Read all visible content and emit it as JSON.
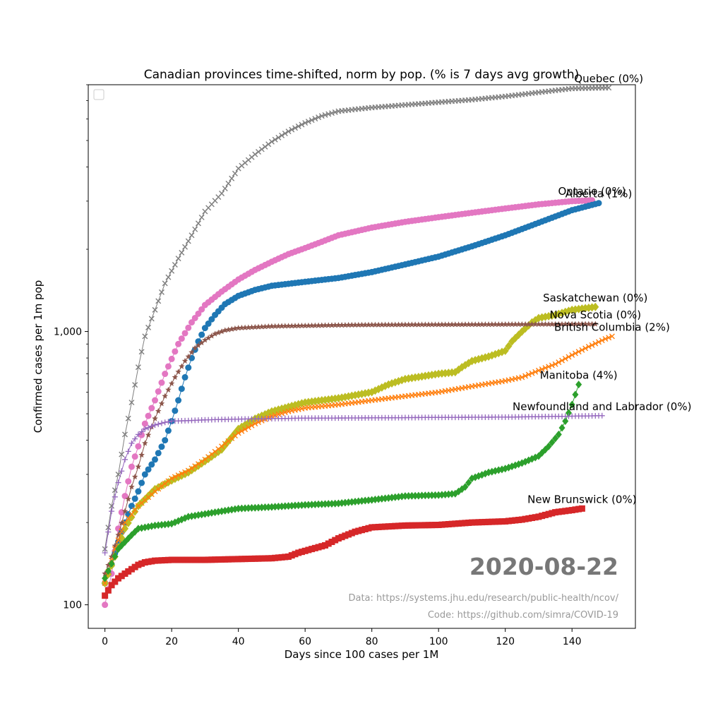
{
  "chart_data": {
    "type": "line",
    "title": "Canadian provinces time-shifted, norm by pop. (% is 7 days avg growth)",
    "xlabel": "Days since 100 cases per 1M",
    "ylabel": "Confirmed cases per 1m pop",
    "xlim": [
      -5,
      159
    ],
    "ylim": [
      82,
      8000
    ],
    "yscale": "log",
    "grid": false,
    "legend": "top-left (empty box)",
    "xticks": [
      0,
      20,
      40,
      60,
      80,
      100,
      120,
      140
    ],
    "xtick_labels": [
      "0",
      "20",
      "40",
      "60",
      "80",
      "100",
      "120",
      "140"
    ],
    "yticks": [
      100,
      1000
    ],
    "ytick_labels": [
      "100",
      "1,000"
    ],
    "date_label": "2020-08-22",
    "source_data": "Data: https://systems.jhu.edu/research/public-health/ncov/",
    "source_code": "Code: https://github.com/simra/COVID-19",
    "series": [
      {
        "name": "Quebec",
        "label": "Quebec (0%)",
        "color": "#7f7f7f",
        "marker": "x",
        "last_day": 151,
        "points": [
          [
            0,
            160
          ],
          [
            2,
            230
          ],
          [
            4,
            300
          ],
          [
            6,
            420
          ],
          [
            8,
            550
          ],
          [
            10,
            740
          ],
          [
            12,
            960
          ],
          [
            15,
            1200
          ],
          [
            18,
            1500
          ],
          [
            22,
            1850
          ],
          [
            26,
            2250
          ],
          [
            30,
            2750
          ],
          [
            35,
            3200
          ],
          [
            40,
            3950
          ],
          [
            45,
            4450
          ],
          [
            50,
            4950
          ],
          [
            55,
            5400
          ],
          [
            60,
            5800
          ],
          [
            65,
            6150
          ],
          [
            70,
            6400
          ],
          [
            80,
            6600
          ],
          [
            90,
            6750
          ],
          [
            100,
            6900
          ],
          [
            110,
            7050
          ],
          [
            120,
            7250
          ],
          [
            130,
            7500
          ],
          [
            140,
            7750
          ],
          [
            151,
            7800
          ]
        ]
      },
      {
        "name": "Ontario",
        "label": "Ontario (0%)",
        "color": "#e377c2",
        "marker": "o",
        "last_day": 146,
        "points": [
          [
            0,
            100
          ],
          [
            2,
            130
          ],
          [
            4,
            190
          ],
          [
            6,
            250
          ],
          [
            8,
            320
          ],
          [
            10,
            380
          ],
          [
            12,
            460
          ],
          [
            15,
            560
          ],
          [
            18,
            700
          ],
          [
            22,
            900
          ],
          [
            26,
            1080
          ],
          [
            30,
            1250
          ],
          [
            35,
            1400
          ],
          [
            40,
            1550
          ],
          [
            45,
            1680
          ],
          [
            50,
            1800
          ],
          [
            55,
            1920
          ],
          [
            60,
            2020
          ],
          [
            65,
            2130
          ],
          [
            70,
            2250
          ],
          [
            80,
            2400
          ],
          [
            90,
            2520
          ],
          [
            100,
            2620
          ],
          [
            110,
            2720
          ],
          [
            120,
            2820
          ],
          [
            130,
            2920
          ],
          [
            140,
            3000
          ],
          [
            146,
            3020
          ]
        ]
      },
      {
        "name": "Alberta",
        "label": "Alberta (1%)",
        "color": "#1f77b4",
        "marker": "o",
        "last_day": 148,
        "points": [
          [
            0,
            120
          ],
          [
            2,
            140
          ],
          [
            4,
            170
          ],
          [
            6,
            200
          ],
          [
            8,
            230
          ],
          [
            10,
            260
          ],
          [
            12,
            300
          ],
          [
            15,
            340
          ],
          [
            18,
            400
          ],
          [
            20,
            470
          ],
          [
            22,
            560
          ],
          [
            24,
            680
          ],
          [
            26,
            800
          ],
          [
            28,
            920
          ],
          [
            30,
            1030
          ],
          [
            33,
            1150
          ],
          [
            36,
            1260
          ],
          [
            40,
            1350
          ],
          [
            45,
            1420
          ],
          [
            50,
            1470
          ],
          [
            60,
            1520
          ],
          [
            70,
            1570
          ],
          [
            80,
            1650
          ],
          [
            90,
            1760
          ],
          [
            100,
            1880
          ],
          [
            110,
            2050
          ],
          [
            120,
            2250
          ],
          [
            130,
            2500
          ],
          [
            140,
            2780
          ],
          [
            148,
            2950
          ]
        ]
      },
      {
        "name": "Saskatchewan",
        "label": "Saskatchewan (0%)",
        "color": "#bcbd22",
        "marker": "D",
        "last_day": 147,
        "points": [
          [
            0,
            120
          ],
          [
            3,
            150
          ],
          [
            6,
            190
          ],
          [
            10,
            230
          ],
          [
            15,
            265
          ],
          [
            20,
            285
          ],
          [
            25,
            305
          ],
          [
            30,
            335
          ],
          [
            35,
            370
          ],
          [
            40,
            440
          ],
          [
            45,
            480
          ],
          [
            50,
            510
          ],
          [
            55,
            530
          ],
          [
            60,
            550
          ],
          [
            70,
            570
          ],
          [
            80,
            600
          ],
          [
            85,
            640
          ],
          [
            90,
            670
          ],
          [
            100,
            700
          ],
          [
            105,
            710
          ],
          [
            107,
            740
          ],
          [
            110,
            780
          ],
          [
            115,
            810
          ],
          [
            120,
            850
          ],
          [
            122,
            920
          ],
          [
            125,
            1000
          ],
          [
            128,
            1080
          ],
          [
            130,
            1120
          ],
          [
            135,
            1150
          ],
          [
            140,
            1200
          ],
          [
            147,
            1230
          ]
        ]
      },
      {
        "name": "Nova Scotia",
        "label": "Nova Scotia (0%)",
        "color": "#8c564b",
        "marker": "*",
        "last_day": 147,
        "points": [
          [
            0,
            130
          ],
          [
            2,
            150
          ],
          [
            4,
            180
          ],
          [
            6,
            220
          ],
          [
            8,
            270
          ],
          [
            10,
            320
          ],
          [
            12,
            390
          ],
          [
            15,
            480
          ],
          [
            18,
            580
          ],
          [
            21,
            680
          ],
          [
            24,
            780
          ],
          [
            27,
            870
          ],
          [
            30,
            930
          ],
          [
            33,
            980
          ],
          [
            36,
            1010
          ],
          [
            40,
            1030
          ],
          [
            50,
            1045
          ],
          [
            60,
            1050
          ],
          [
            70,
            1055
          ],
          [
            80,
            1058
          ],
          [
            100,
            1060
          ],
          [
            120,
            1062
          ],
          [
            147,
            1065
          ]
        ]
      },
      {
        "name": "British Columbia",
        "label": "British Columbia (2%)",
        "color": "#ff7f0e",
        "marker": "x",
        "last_day": 152,
        "points": [
          [
            0,
            120
          ],
          [
            3,
            160
          ],
          [
            6,
            200
          ],
          [
            10,
            230
          ],
          [
            15,
            260
          ],
          [
            20,
            290
          ],
          [
            25,
            310
          ],
          [
            30,
            340
          ],
          [
            35,
            380
          ],
          [
            40,
            425
          ],
          [
            45,
            460
          ],
          [
            50,
            490
          ],
          [
            55,
            510
          ],
          [
            60,
            525
          ],
          [
            70,
            540
          ],
          [
            80,
            560
          ],
          [
            90,
            580
          ],
          [
            100,
            600
          ],
          [
            110,
            630
          ],
          [
            120,
            660
          ],
          [
            125,
            680
          ],
          [
            130,
            720
          ],
          [
            135,
            760
          ],
          [
            140,
            820
          ],
          [
            145,
            880
          ],
          [
            150,
            940
          ],
          [
            152,
            960
          ]
        ]
      },
      {
        "name": "Manitoba",
        "label": "Manitoba (4%)",
        "color": "#2ca02c",
        "marker": "P",
        "last_day": 142,
        "points": [
          [
            0,
            125
          ],
          [
            4,
            160
          ],
          [
            8,
            180
          ],
          [
            10,
            190
          ],
          [
            15,
            195
          ],
          [
            20,
            198
          ],
          [
            25,
            210
          ],
          [
            30,
            215
          ],
          [
            35,
            220
          ],
          [
            40,
            225
          ],
          [
            50,
            228
          ],
          [
            60,
            232
          ],
          [
            70,
            235
          ],
          [
            80,
            242
          ],
          [
            90,
            250
          ],
          [
            100,
            252
          ],
          [
            105,
            255
          ],
          [
            108,
            270
          ],
          [
            110,
            290
          ],
          [
            115,
            305
          ],
          [
            120,
            315
          ],
          [
            125,
            330
          ],
          [
            130,
            350
          ],
          [
            133,
            380
          ],
          [
            136,
            420
          ],
          [
            138,
            470
          ],
          [
            140,
            540
          ],
          [
            142,
            640
          ]
        ]
      },
      {
        "name": "Newfoundland and Labrador",
        "label": "Newfoundland and Labrador (0%)",
        "color": "#9467bd",
        "marker": "+",
        "last_day": 149,
        "points": [
          [
            0,
            155
          ],
          [
            2,
            220
          ],
          [
            4,
            280
          ],
          [
            6,
            340
          ],
          [
            8,
            390
          ],
          [
            10,
            420
          ],
          [
            12,
            440
          ],
          [
            15,
            455
          ],
          [
            18,
            465
          ],
          [
            20,
            470
          ],
          [
            25,
            472
          ],
          [
            30,
            475
          ],
          [
            40,
            478
          ],
          [
            50,
            480
          ],
          [
            60,
            482
          ],
          [
            80,
            483
          ],
          [
            100,
            485
          ],
          [
            120,
            486
          ],
          [
            130,
            488
          ],
          [
            140,
            490
          ],
          [
            149,
            492
          ]
        ]
      },
      {
        "name": "New Brunswick",
        "label": "New Brunswick (0%)",
        "color": "#d62728",
        "marker": "s",
        "last_day": 143,
        "points": [
          [
            0,
            108
          ],
          [
            2,
            118
          ],
          [
            4,
            125
          ],
          [
            6,
            130
          ],
          [
            8,
            135
          ],
          [
            10,
            140
          ],
          [
            12,
            143
          ],
          [
            15,
            145
          ],
          [
            20,
            146
          ],
          [
            30,
            146
          ],
          [
            40,
            147
          ],
          [
            50,
            148
          ],
          [
            55,
            150
          ],
          [
            58,
            155
          ],
          [
            62,
            160
          ],
          [
            66,
            165
          ],
          [
            70,
            175
          ],
          [
            75,
            185
          ],
          [
            80,
            192
          ],
          [
            90,
            195
          ],
          [
            100,
            196
          ],
          [
            110,
            200
          ],
          [
            120,
            202
          ],
          [
            125,
            205
          ],
          [
            130,
            210
          ],
          [
            135,
            218
          ],
          [
            140,
            222
          ],
          [
            143,
            225
          ]
        ]
      }
    ]
  }
}
